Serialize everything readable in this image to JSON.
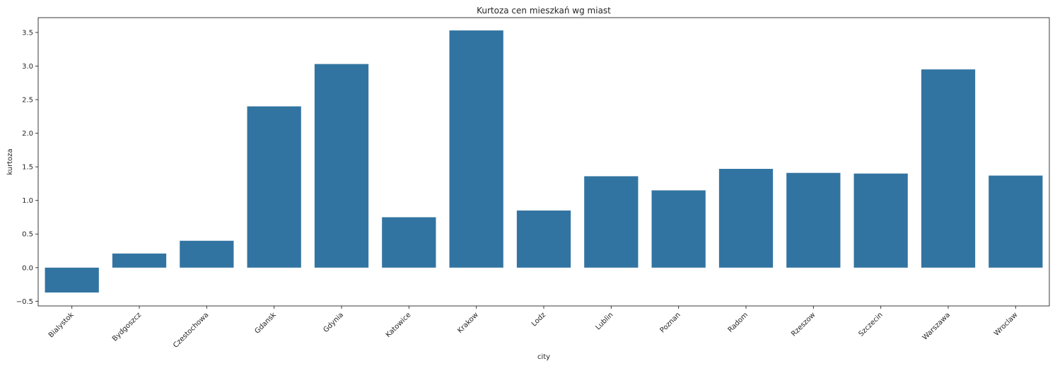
{
  "chart_data": {
    "type": "bar",
    "title": "Kurtoza cen mieszkań wg miast",
    "xlabel": "city",
    "ylabel": "kurtoza",
    "categories": [
      "Bialystok",
      "Bydgoszcz",
      "Czestochowa",
      "Gdansk",
      "Gdynia",
      "Katowice",
      "Krakow",
      "Lodz",
      "Lublin",
      "Poznan",
      "Radom",
      "Rzeszow",
      "Szczecin",
      "Warszawa",
      "Wroclaw"
    ],
    "values": [
      -0.37,
      0.21,
      0.4,
      2.4,
      3.03,
      0.75,
      3.53,
      0.85,
      1.36,
      1.15,
      1.47,
      1.41,
      1.4,
      2.95,
      1.37
    ],
    "ylim": [
      -0.57,
      3.72
    ],
    "yticks": [
      -0.5,
      0.0,
      0.5,
      1.0,
      1.5,
      2.0,
      2.5,
      3.0,
      3.5
    ],
    "ytick_labels": [
      "−0.5",
      "0.0",
      "0.5",
      "1.0",
      "1.5",
      "2.0",
      "2.5",
      "3.0",
      "3.5"
    ],
    "grid": false,
    "bar_color": "#3274a1"
  }
}
